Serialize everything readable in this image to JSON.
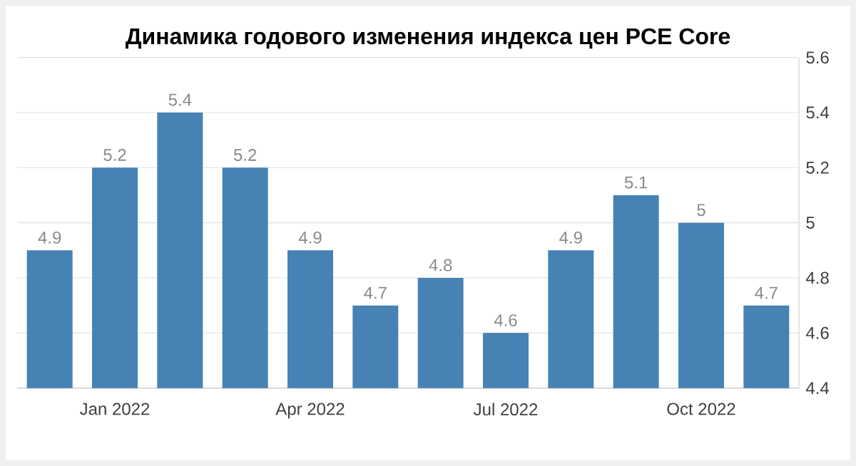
{
  "chart_data": {
    "type": "bar",
    "title": "Динамика годового изменения индекса цен PCE Core",
    "categories": [
      null,
      "Jan 2022",
      null,
      null,
      "Apr 2022",
      null,
      null,
      "Jul 2022",
      null,
      null,
      "Oct 2022",
      null
    ],
    "values": [
      4.9,
      5.2,
      5.4,
      5.2,
      4.9,
      4.7,
      4.8,
      4.6,
      4.9,
      5.1,
      5,
      4.7
    ],
    "color": "#4682b4",
    "ylim": [
      4.4,
      5.6
    ],
    "yticks": [
      4.4,
      4.6,
      4.8,
      5,
      5.2,
      5.4,
      5.6
    ],
    "grid": "y",
    "data_labels": true
  }
}
